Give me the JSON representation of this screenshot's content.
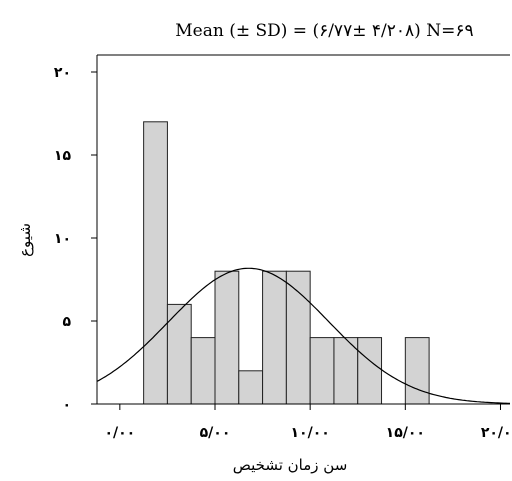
{
  "chart_data": {
    "type": "bar",
    "title": "Mean (± SD) = (۶/۷۷± ۴/۲۰۸)",
    "n_label": "N=۶۹",
    "xlabel": "سن زمان تشخیص",
    "ylabel": "شیوع",
    "xlim": [
      -1.2,
      20.5
    ],
    "ylim": [
      0,
      20
    ],
    "x_ticks": [
      {
        "value": 0,
        "label": "۰/۰۰"
      },
      {
        "value": 5,
        "label": "۵/۰۰"
      },
      {
        "value": 10,
        "label": "۱۰/۰۰"
      },
      {
        "value": 15,
        "label": "۱۵/۰۰"
      },
      {
        "value": 20,
        "label": "۲۰/۰۰"
      }
    ],
    "y_ticks": [
      {
        "value": 0,
        "label": "۰"
      },
      {
        "value": 5,
        "label": "۵"
      },
      {
        "value": 10,
        "label": "۱۰"
      },
      {
        "value": 15,
        "label": "۱۵"
      },
      {
        "value": 20,
        "label": "۲۰"
      }
    ],
    "bins": [
      {
        "start": 1.25,
        "end": 2.5,
        "count": 17
      },
      {
        "start": 2.5,
        "end": 3.75,
        "count": 6
      },
      {
        "start": 3.75,
        "end": 5.0,
        "count": 4
      },
      {
        "start": 5.0,
        "end": 6.25,
        "count": 8
      },
      {
        "start": 6.25,
        "end": 7.5,
        "count": 2
      },
      {
        "start": 7.5,
        "end": 8.75,
        "count": 8
      },
      {
        "start": 8.75,
        "end": 10.0,
        "count": 8
      },
      {
        "start": 10.0,
        "end": 11.25,
        "count": 4
      },
      {
        "start": 11.25,
        "end": 12.5,
        "count": 4
      },
      {
        "start": 12.5,
        "end": 13.75,
        "count": 4
      },
      {
        "start": 13.75,
        "end": 15.0,
        "count": 0
      },
      {
        "start": 15.0,
        "end": 16.25,
        "count": 4
      }
    ],
    "normal_curve": {
      "mean": 6.77,
      "sd": 4.208,
      "n": 69
    },
    "colors": {
      "bar_fill": "#d3d3d3",
      "bar_stroke": "#222222",
      "curve": "#000000",
      "axis": "#000000"
    },
    "grid": false,
    "legend": "none"
  }
}
